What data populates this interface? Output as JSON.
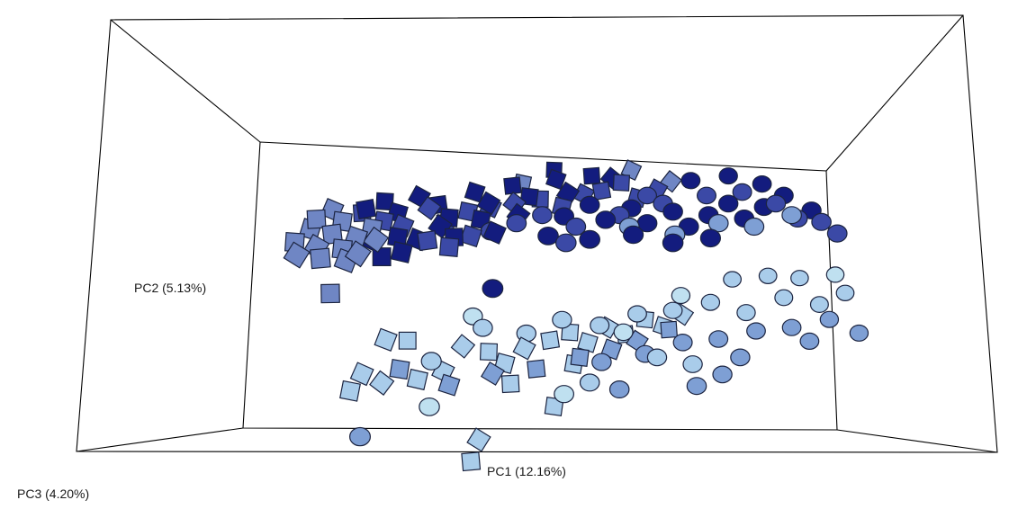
{
  "chart_data": {
    "type": "scatter",
    "projection": "3d-pcoa",
    "axes": {
      "x": {
        "label": "PC1 (12.16%)",
        "range": [
          -1,
          1
        ]
      },
      "y": {
        "label": "PC2 (5.13%)",
        "range": [
          -1,
          1
        ]
      },
      "z": {
        "label": "PC3 (4.20%)",
        "range": [
          -1,
          1
        ]
      }
    },
    "grid": false,
    "legend": "none",
    "marker_shapes": [
      "square",
      "circle"
    ],
    "colors": {
      "navy": "#131C7E",
      "royal": "#3B49A6",
      "cornflower": "#6F86C4",
      "steel": "#7E9FD4",
      "sky": "#A9CCEA",
      "pale": "#BFE0F0",
      "frame": "#000000"
    },
    "series": [
      {
        "shape": "square",
        "color_key": "navy",
        "points": [
          [
            -0.58,
            0.45,
            0.0
          ],
          [
            -0.53,
            0.48,
            0.2
          ],
          [
            -0.48,
            0.42,
            0.1
          ],
          [
            -0.42,
            0.5,
            0.3
          ],
          [
            -0.35,
            0.46,
            0.2
          ],
          [
            -0.3,
            0.4,
            0.0
          ],
          [
            -0.24,
            0.52,
            0.4
          ],
          [
            -0.18,
            0.47,
            0.2
          ],
          [
            -0.12,
            0.55,
            0.5
          ],
          [
            -0.05,
            0.5,
            0.3
          ],
          [
            0.02,
            0.58,
            0.6
          ],
          [
            0.08,
            0.52,
            0.3
          ],
          [
            0.14,
            0.6,
            0.6
          ],
          [
            -0.46,
            0.3,
            -0.2
          ],
          [
            -0.4,
            0.28,
            -0.1
          ],
          [
            -0.33,
            0.35,
            0.0
          ],
          [
            -0.27,
            0.3,
            -0.2
          ],
          [
            -0.2,
            0.38,
            0.1
          ],
          [
            -0.14,
            0.32,
            -0.1
          ],
          [
            -0.08,
            0.4,
            0.2
          ],
          [
            -0.5,
            0.2,
            -0.4
          ],
          [
            -0.44,
            0.22,
            -0.3
          ],
          [
            -0.56,
            0.28,
            -0.1
          ],
          [
            0.2,
            0.58,
            0.7
          ],
          [
            0.0,
            0.62,
            0.8
          ]
        ]
      },
      {
        "shape": "square",
        "color_key": "royal",
        "points": [
          [
            -0.6,
            0.42,
            0.1
          ],
          [
            -0.52,
            0.38,
            0.0
          ],
          [
            -0.45,
            0.36,
            -0.1
          ],
          [
            -0.38,
            0.44,
            0.2
          ],
          [
            -0.32,
            0.36,
            0.1
          ],
          [
            -0.25,
            0.42,
            0.2
          ],
          [
            -0.18,
            0.44,
            0.3
          ],
          [
            -0.1,
            0.46,
            0.3
          ],
          [
            -0.02,
            0.48,
            0.4
          ],
          [
            0.06,
            0.44,
            0.3
          ],
          [
            0.12,
            0.5,
            0.5
          ],
          [
            0.18,
            0.52,
            0.5
          ],
          [
            0.24,
            0.56,
            0.6
          ],
          [
            0.3,
            0.48,
            0.5
          ],
          [
            0.36,
            0.52,
            0.6
          ],
          [
            -0.36,
            0.28,
            -0.2
          ],
          [
            -0.28,
            0.25,
            -0.3
          ],
          [
            -0.22,
            0.3,
            -0.1
          ]
        ]
      },
      {
        "shape": "square",
        "color_key": "cornflower",
        "points": [
          [
            -0.78,
            0.3,
            -0.6
          ],
          [
            -0.74,
            0.36,
            -0.4
          ],
          [
            -0.7,
            0.28,
            -0.7
          ],
          [
            -0.66,
            0.34,
            -0.5
          ],
          [
            -0.62,
            0.26,
            -0.6
          ],
          [
            -0.58,
            0.32,
            -0.5
          ],
          [
            -0.76,
            0.24,
            -0.8
          ],
          [
            -0.68,
            0.22,
            -0.8
          ],
          [
            -0.64,
            0.4,
            -0.3
          ],
          [
            -0.6,
            0.2,
            -0.7
          ],
          [
            -0.56,
            0.24,
            -0.7
          ],
          [
            -0.72,
            0.42,
            -0.4
          ],
          [
            -0.54,
            0.36,
            -0.3
          ],
          [
            -0.68,
            0.46,
            -0.2
          ],
          [
            -0.52,
            0.3,
            -0.4
          ],
          [
            -0.66,
            0.0,
            -0.6
          ],
          [
            -0.1,
            0.55,
            0.7
          ],
          [
            0.26,
            0.62,
            0.8
          ],
          [
            0.4,
            0.56,
            0.7
          ]
        ]
      },
      {
        "shape": "square",
        "color_key": "sky",
        "points": [
          [
            -0.62,
            -0.6,
            -0.2
          ],
          [
            -0.58,
            -0.5,
            -0.2
          ],
          [
            -0.52,
            -0.56,
            -0.1
          ],
          [
            -0.44,
            -0.32,
            0.0
          ],
          [
            -0.4,
            -0.54,
            -0.1
          ],
          [
            -0.32,
            -0.5,
            0.0
          ],
          [
            -0.26,
            -0.36,
            0.1
          ],
          [
            -0.18,
            -0.4,
            0.2
          ],
          [
            -0.12,
            -0.46,
            0.1
          ],
          [
            -0.06,
            -0.38,
            0.2
          ],
          [
            0.02,
            -0.34,
            0.3
          ],
          [
            0.08,
            -0.3,
            0.4
          ],
          [
            0.14,
            -0.36,
            0.4
          ],
          [
            0.2,
            -0.28,
            0.5
          ],
          [
            0.26,
            -0.32,
            0.5
          ],
          [
            0.32,
            -0.24,
            0.6
          ],
          [
            0.38,
            -0.28,
            0.6
          ],
          [
            -0.2,
            -0.9,
            0.0
          ],
          [
            -0.22,
            -1.02,
            -0.1
          ],
          [
            0.04,
            -0.72,
            0.2
          ],
          [
            -0.5,
            -0.3,
            -0.2
          ],
          [
            0.44,
            -0.22,
            0.7
          ],
          [
            -0.1,
            -0.58,
            0.1
          ],
          [
            0.1,
            -0.48,
            0.3
          ]
        ]
      },
      {
        "shape": "square",
        "color_key": "steel",
        "points": [
          [
            -0.3,
            -0.58,
            0.0
          ],
          [
            -0.16,
            -0.52,
            0.1
          ],
          [
            -0.02,
            -0.5,
            0.2
          ],
          [
            0.12,
            -0.44,
            0.3
          ],
          [
            0.22,
            -0.4,
            0.4
          ],
          [
            0.3,
            -0.36,
            0.5
          ],
          [
            0.4,
            -0.3,
            0.6
          ],
          [
            -0.46,
            -0.48,
            -0.1
          ]
        ]
      },
      {
        "shape": "circle",
        "color_key": "navy",
        "points": [
          [
            0.08,
            0.4,
            0.1
          ],
          [
            0.16,
            0.46,
            0.2
          ],
          [
            0.22,
            0.38,
            0.1
          ],
          [
            0.3,
            0.44,
            0.2
          ],
          [
            0.36,
            0.36,
            0.1
          ],
          [
            0.44,
            0.42,
            0.2
          ],
          [
            0.5,
            0.34,
            0.1
          ],
          [
            0.56,
            0.4,
            0.2
          ],
          [
            0.62,
            0.46,
            0.3
          ],
          [
            0.68,
            0.38,
            0.2
          ],
          [
            0.74,
            0.44,
            0.3
          ],
          [
            0.8,
            0.5,
            0.4
          ],
          [
            0.48,
            0.58,
            0.5
          ],
          [
            0.6,
            0.6,
            0.6
          ],
          [
            0.72,
            0.56,
            0.5
          ],
          [
            0.04,
            0.3,
            -0.1
          ],
          [
            0.18,
            0.28,
            -0.1
          ],
          [
            0.32,
            0.3,
            0.0
          ],
          [
            0.46,
            0.26,
            -0.1
          ],
          [
            0.58,
            0.28,
            0.0
          ],
          [
            -0.14,
            0.0,
            -0.2
          ],
          [
            0.9,
            0.42,
            0.3
          ]
        ]
      },
      {
        "shape": "circle",
        "color_key": "royal",
        "points": [
          [
            -0.16,
            0.32,
            0.0
          ],
          [
            -0.08,
            0.36,
            0.1
          ],
          [
            0.0,
            0.4,
            0.2
          ],
          [
            0.12,
            0.34,
            0.1
          ],
          [
            0.26,
            0.4,
            0.2
          ],
          [
            0.4,
            0.46,
            0.3
          ],
          [
            0.54,
            0.5,
            0.4
          ],
          [
            0.66,
            0.52,
            0.4
          ],
          [
            0.78,
            0.46,
            0.3
          ],
          [
            0.86,
            0.38,
            0.2
          ],
          [
            0.94,
            0.36,
            0.2
          ],
          [
            1.0,
            0.3,
            0.1
          ],
          [
            0.34,
            0.5,
            0.4
          ],
          [
            0.1,
            0.26,
            -0.1
          ]
        ]
      },
      {
        "shape": "circle",
        "color_key": "steel",
        "points": [
          [
            0.3,
            0.34,
            0.1
          ],
          [
            0.46,
            0.3,
            0.0
          ],
          [
            0.6,
            0.36,
            0.1
          ],
          [
            0.72,
            0.34,
            0.1
          ],
          [
            0.84,
            0.4,
            0.2
          ],
          [
            0.2,
            -0.46,
            0.2
          ],
          [
            0.34,
            -0.42,
            0.3
          ],
          [
            0.46,
            -0.36,
            0.4
          ],
          [
            0.58,
            -0.34,
            0.4
          ],
          [
            0.7,
            -0.3,
            0.5
          ],
          [
            0.82,
            -0.28,
            0.5
          ],
          [
            0.94,
            -0.24,
            0.6
          ],
          [
            1.04,
            -0.32,
            0.6
          ],
          [
            0.6,
            -0.54,
            0.3
          ],
          [
            0.52,
            -0.6,
            0.2
          ],
          [
            -0.58,
            -0.86,
            -0.3
          ],
          [
            0.26,
            -0.62,
            0.2
          ],
          [
            0.66,
            -0.44,
            0.3
          ],
          [
            0.88,
            -0.36,
            0.5
          ]
        ]
      },
      {
        "shape": "circle",
        "color_key": "sky",
        "points": [
          [
            -0.2,
            -0.26,
            0.2
          ],
          [
            -0.06,
            -0.3,
            0.3
          ],
          [
            0.06,
            -0.22,
            0.3
          ],
          [
            0.18,
            -0.26,
            0.4
          ],
          [
            0.3,
            -0.2,
            0.5
          ],
          [
            0.42,
            -0.18,
            0.5
          ],
          [
            0.54,
            -0.14,
            0.6
          ],
          [
            0.66,
            -0.2,
            0.6
          ],
          [
            0.78,
            -0.12,
            0.7
          ],
          [
            0.9,
            -0.16,
            0.7
          ],
          [
            0.6,
            -0.02,
            0.8
          ],
          [
            0.72,
            0.0,
            0.8
          ],
          [
            0.82,
            -0.02,
            0.9
          ],
          [
            0.38,
            -0.44,
            0.3
          ],
          [
            0.16,
            -0.58,
            0.2
          ],
          [
            -0.36,
            -0.44,
            0.0
          ],
          [
            0.5,
            -0.48,
            0.3
          ],
          [
            0.98,
            -0.1,
            0.8
          ]
        ]
      },
      {
        "shape": "circle",
        "color_key": "pale",
        "points": [
          [
            -0.24,
            -0.2,
            0.3
          ],
          [
            -0.36,
            -0.7,
            -0.1
          ],
          [
            0.26,
            -0.3,
            0.4
          ],
          [
            0.94,
            0.0,
            0.9
          ],
          [
            0.08,
            -0.64,
            0.1
          ],
          [
            0.44,
            -0.1,
            0.6
          ]
        ]
      }
    ]
  }
}
